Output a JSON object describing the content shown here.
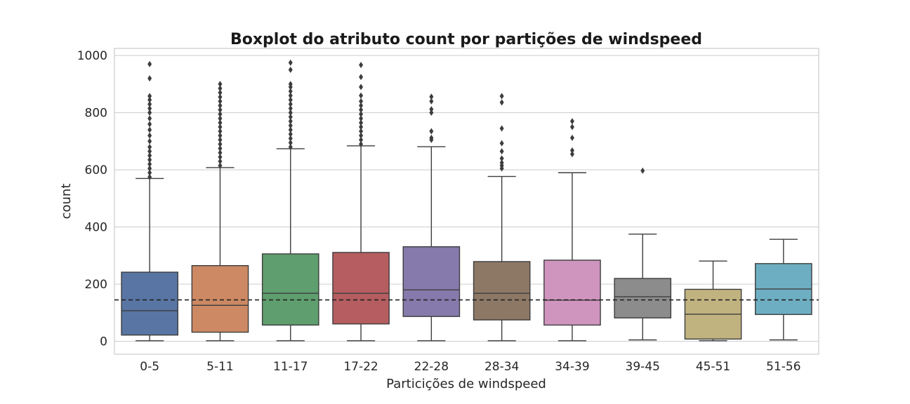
{
  "chart_data": {
    "type": "boxplot",
    "title": "Boxplot do atributo count por partições de windspeed",
    "xlabel": "Particições de windspeed",
    "ylabel": "count",
    "ylim": [
      -45,
      1025
    ],
    "yticks": [
      0,
      200,
      400,
      600,
      800,
      1000
    ],
    "grid": true,
    "reference_line": {
      "value": 145,
      "style": "dashed"
    },
    "categories": [
      "0-5",
      "5-11",
      "11-17",
      "17-22",
      "22-28",
      "28-34",
      "34-39",
      "39-45",
      "45-51",
      "51-56"
    ],
    "colors": [
      "#5875a4",
      "#cc8963",
      "#5f9e6e",
      "#b55d60",
      "#857aab",
      "#8d7866",
      "#d095bf",
      "#8c8c8c",
      "#c1b37f",
      "#6eaec2"
    ],
    "boxes": [
      {
        "min": 2,
        "q1": 22,
        "median": 107,
        "q3": 242,
        "max": 570,
        "outliers": [
          575,
          590,
          605,
          620,
          635,
          650,
          665,
          680,
          700,
          720,
          740,
          760,
          780,
          800,
          815,
          830,
          845,
          858,
          920,
          970
        ]
      },
      {
        "min": 2,
        "q1": 32,
        "median": 126,
        "q3": 265,
        "max": 608,
        "outliers": [
          615,
          630,
          645,
          660,
          675,
          690,
          705,
          720,
          735,
          750,
          765,
          780,
          795,
          810,
          825,
          840,
          855,
          870,
          885,
          900
        ]
      },
      {
        "min": 2,
        "q1": 57,
        "median": 168,
        "q3": 306,
        "max": 674,
        "outliers": [
          680,
          695,
          710,
          725,
          740,
          755,
          770,
          785,
          800,
          815,
          830,
          845,
          860,
          875,
          890,
          900,
          950,
          975
        ]
      },
      {
        "min": 2,
        "q1": 61,
        "median": 168,
        "q3": 311,
        "max": 684,
        "outliers": [
          690,
          705,
          720,
          735,
          750,
          765,
          780,
          795,
          810,
          825,
          840,
          860,
          890,
          925,
          967
        ]
      },
      {
        "min": 2,
        "q1": 87,
        "median": 180,
        "q3": 331,
        "max": 681,
        "outliers": [
          705,
          712,
          735,
          800,
          812,
          840,
          856
        ]
      },
      {
        "min": 2,
        "q1": 75,
        "median": 168,
        "q3": 279,
        "max": 577,
        "outliers": [
          605,
          615,
          625,
          640,
          665,
          693,
          745,
          836,
          858
        ]
      },
      {
        "min": 2,
        "q1": 57,
        "median": 144,
        "q3": 284,
        "max": 590,
        "outliers": [
          655,
          668,
          712,
          750,
          770
        ]
      },
      {
        "min": 5,
        "q1": 82,
        "median": 156,
        "q3": 220,
        "max": 375,
        "outliers": [
          597
        ]
      },
      {
        "min": 2,
        "q1": 8,
        "median": 95,
        "q3": 182,
        "max": 281,
        "outliers": []
      },
      {
        "min": 5,
        "q1": 94,
        "median": 183,
        "q3": 272,
        "max": 357,
        "outliers": []
      }
    ]
  }
}
